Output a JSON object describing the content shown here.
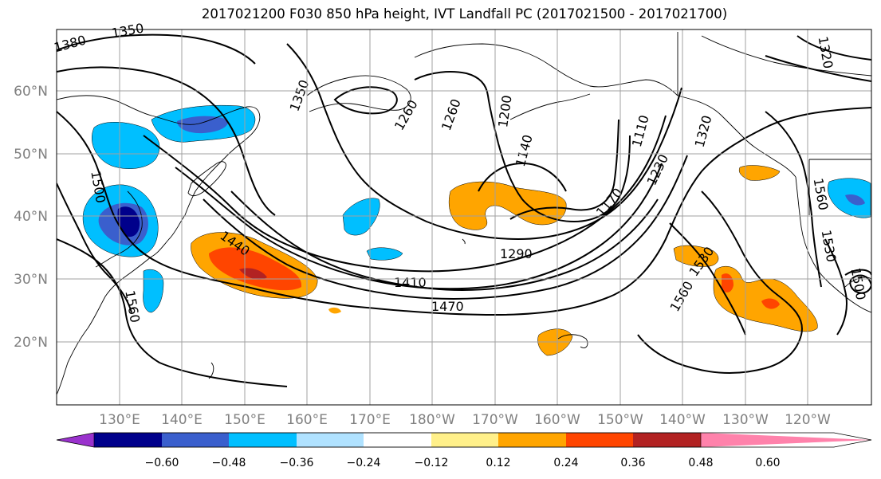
{
  "title": "2017021200 F030 850 hPa height, IVT Landfall PC (2017021500 - 2017021700)",
  "lat_ticks": [
    "60°N",
    "50°N",
    "40°N",
    "30°N",
    "20°N"
  ],
  "lon_ticks": [
    "130°E",
    "140°E",
    "150°E",
    "160°E",
    "170°E",
    "180°W",
    "170°W",
    "160°W",
    "150°W",
    "140°W",
    "130°W",
    "120°W"
  ],
  "contour_labels": [
    "1380",
    "1350",
    "1350",
    "1260",
    "1260",
    "1200",
    "1140",
    "1110",
    "1170",
    "1230",
    "1320",
    "1290",
    "1410",
    "1470",
    "1440",
    "1500",
    "1560",
    "1530",
    "1560",
    "1560",
    "1530",
    "1500",
    "1320"
  ],
  "colorbar": {
    "ticks": [
      "−0.60",
      "−0.48",
      "−0.36",
      "−0.24",
      "−0.12",
      "0.12",
      "0.24",
      "0.36",
      "0.48",
      "0.60"
    ],
    "colors": [
      "#9a32cd",
      "#00008b",
      "#3a5fcd",
      "#00bfff",
      "#b0e2ff",
      "#ffffff",
      "#fff08a",
      "#ffa500",
      "#ff4500",
      "#b22222",
      "#ff82ab"
    ]
  }
}
